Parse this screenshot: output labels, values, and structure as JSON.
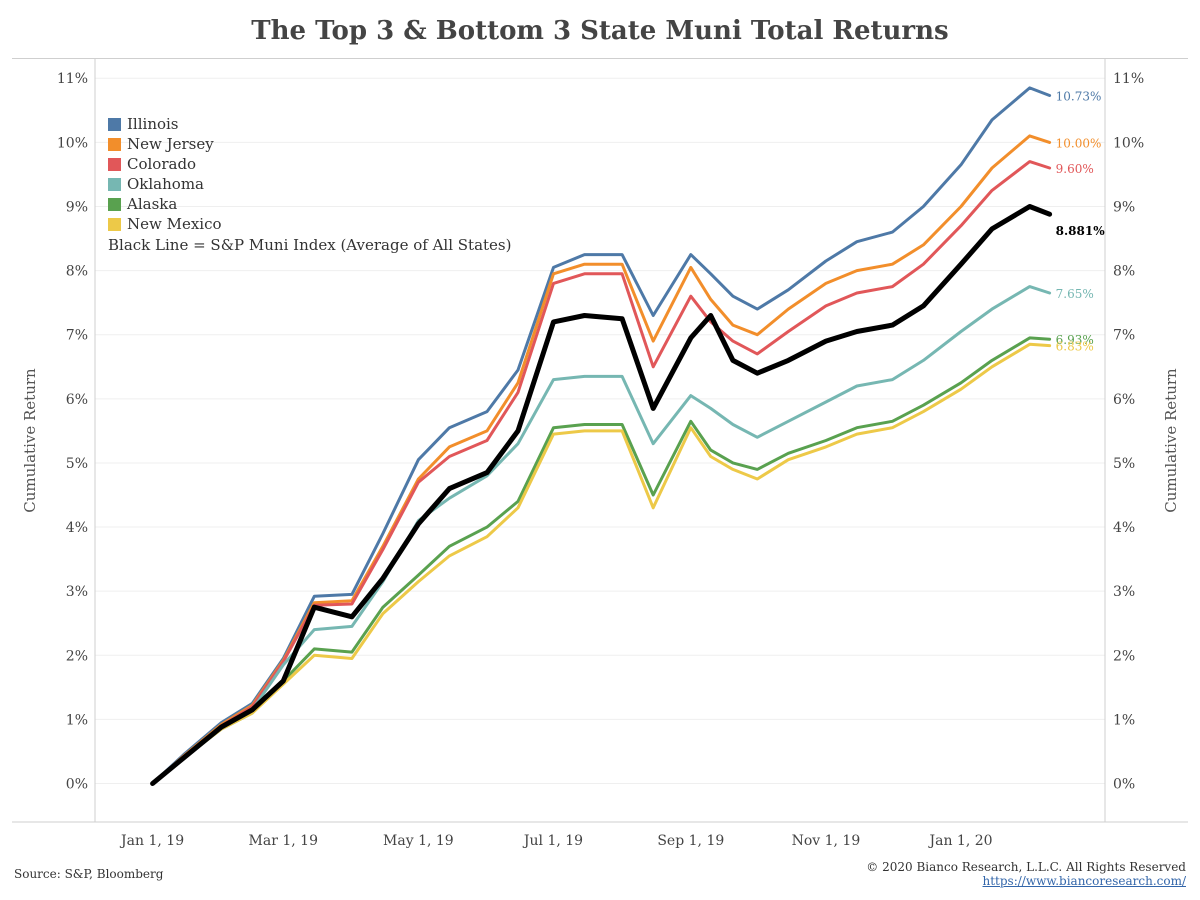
{
  "chart_data": {
    "type": "line",
    "title": "The Top 3 & Bottom 3 State Muni Total Returns",
    "ylabel_left": "Cumulative Return",
    "ylabel_right": "Cumulative Return",
    "y_ticks": [
      "0%",
      "1%",
      "2%",
      "3%",
      "4%",
      "5%",
      "6%",
      "7%",
      "8%",
      "9%",
      "10%",
      "11%"
    ],
    "x_ticks": [
      {
        "label": "Jan 1, 19",
        "date": "2019-01-01"
      },
      {
        "label": "Mar 1, 19",
        "date": "2019-03-01"
      },
      {
        "label": "May 1, 19",
        "date": "2019-05-01"
      },
      {
        "label": "Jul 1, 19",
        "date": "2019-07-01"
      },
      {
        "label": "Sep 1, 19",
        "date": "2019-09-01"
      },
      {
        "label": "Nov 1, 19",
        "date": "2019-11-01"
      },
      {
        "label": "Jan 1, 20",
        "date": "2020-01-01"
      }
    ],
    "x_range": [
      "2018-12-06",
      "2020-03-06"
    ],
    "ylim": [
      -0.6,
      11.3
    ],
    "grid": true,
    "legend_position": "top-left",
    "legend_note": "Black Line = S&P Muni Index (Average of All States)",
    "x": [
      "2019-01-01",
      "2019-01-15",
      "2019-02-01",
      "2019-02-15",
      "2019-03-01",
      "2019-03-15",
      "2019-04-01",
      "2019-04-15",
      "2019-05-01",
      "2019-05-15",
      "2019-06-01",
      "2019-06-15",
      "2019-07-01",
      "2019-07-15",
      "2019-08-01",
      "2019-08-15",
      "2019-09-01",
      "2019-09-10",
      "2019-09-20",
      "2019-10-01",
      "2019-10-15",
      "2019-11-01",
      "2019-11-15",
      "2019-12-01",
      "2019-12-15",
      "2020-01-01",
      "2020-01-15",
      "2020-02-01",
      "2020-02-10"
    ],
    "series": [
      {
        "name": "Illinois",
        "color": "#4e79a7",
        "end_label": "10.73%",
        "width": 3,
        "values": [
          0.0,
          0.45,
          0.95,
          1.25,
          1.95,
          2.92,
          2.95,
          3.9,
          5.05,
          5.55,
          5.8,
          6.45,
          8.05,
          8.25,
          8.25,
          7.3,
          8.25,
          7.95,
          7.6,
          7.4,
          7.7,
          8.15,
          8.45,
          8.6,
          9.0,
          9.65,
          10.35,
          10.85,
          10.73
        ]
      },
      {
        "name": "New Jersey",
        "color": "#f28e2b",
        "end_label": "10.00%",
        "width": 3,
        "values": [
          0.0,
          0.43,
          0.92,
          1.22,
          1.92,
          2.82,
          2.85,
          3.7,
          4.75,
          5.25,
          5.5,
          6.25,
          7.95,
          8.1,
          8.1,
          6.9,
          8.05,
          7.55,
          7.15,
          7.0,
          7.4,
          7.8,
          8.0,
          8.1,
          8.4,
          9.0,
          9.6,
          10.1,
          10.0
        ]
      },
      {
        "name": "Colorado",
        "color": "#e15759",
        "end_label": "9.60%",
        "width": 3,
        "values": [
          0.0,
          0.42,
          0.9,
          1.2,
          1.9,
          2.78,
          2.8,
          3.65,
          4.7,
          5.1,
          5.35,
          6.1,
          7.8,
          7.95,
          7.95,
          6.5,
          7.6,
          7.2,
          6.9,
          6.7,
          7.05,
          7.45,
          7.65,
          7.75,
          8.1,
          8.7,
          9.25,
          9.7,
          9.6
        ]
      },
      {
        "name": "Oklahoma",
        "color": "#76b7b2",
        "end_label": "7.65%",
        "width": 3,
        "values": [
          0.0,
          0.4,
          0.88,
          1.15,
          1.85,
          2.4,
          2.45,
          3.15,
          4.1,
          4.45,
          4.8,
          5.3,
          6.3,
          6.35,
          6.35,
          5.3,
          6.05,
          5.85,
          5.6,
          5.4,
          5.65,
          5.95,
          6.2,
          6.3,
          6.6,
          7.05,
          7.4,
          7.75,
          7.65
        ]
      },
      {
        "name": "Alaska",
        "color": "#59a14f",
        "end_label": "6.93%",
        "width": 3,
        "values": [
          0.0,
          0.4,
          0.85,
          1.1,
          1.6,
          2.1,
          2.05,
          2.75,
          3.25,
          3.7,
          4.0,
          4.4,
          5.55,
          5.6,
          5.6,
          4.5,
          5.65,
          5.2,
          5.0,
          4.9,
          5.15,
          5.35,
          5.55,
          5.65,
          5.9,
          6.25,
          6.6,
          6.95,
          6.93
        ]
      },
      {
        "name": "New Mexico",
        "color": "#edc948",
        "end_label": "6.83%",
        "width": 3,
        "values": [
          0.0,
          0.4,
          0.85,
          1.1,
          1.55,
          2.0,
          1.95,
          2.65,
          3.15,
          3.55,
          3.85,
          4.3,
          5.45,
          5.5,
          5.5,
          4.3,
          5.55,
          5.1,
          4.9,
          4.75,
          5.05,
          5.25,
          5.45,
          5.55,
          5.8,
          6.15,
          6.5,
          6.85,
          6.83
        ]
      },
      {
        "name": "S&P Muni Index",
        "color": "#000000",
        "end_label": "8.881%",
        "width": 5,
        "values": [
          0.0,
          0.4,
          0.88,
          1.15,
          1.6,
          2.75,
          2.6,
          3.2,
          4.05,
          4.6,
          4.85,
          5.5,
          7.2,
          7.3,
          7.25,
          5.85,
          6.95,
          7.3,
          6.6,
          6.4,
          6.6,
          6.9,
          7.05,
          7.15,
          7.45,
          8.1,
          8.65,
          9.0,
          8.88
        ]
      }
    ]
  },
  "legend": [
    "Illinois",
    "New Jersey",
    "Colorado",
    "Oklahoma",
    "Alaska",
    "New Mexico"
  ],
  "footer": {
    "source": "Source: S&P, Bloomberg",
    "copyright": "© 2020 Bianco Research, L.L.C. All Rights Reserved",
    "website": "https://www.biancoresearch.com/"
  }
}
